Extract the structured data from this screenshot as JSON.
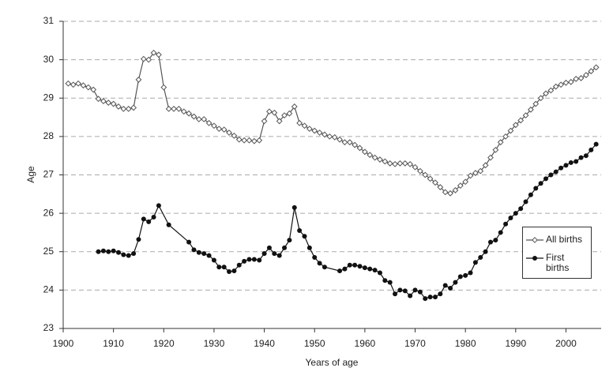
{
  "chart_data": {
    "type": "line",
    "x_label": "Years of age",
    "y_label": "Age",
    "xlim": [
      1900,
      2007
    ],
    "xticks": [
      1900,
      1910,
      1920,
      1930,
      1940,
      1950,
      1960,
      1970,
      1980,
      1990,
      2000
    ],
    "ylim": [
      23,
      31
    ],
    "yticks": [
      23,
      24,
      25,
      26,
      27,
      28,
      29,
      30,
      31
    ],
    "grid": true,
    "series": [
      {
        "name": "All births",
        "color": "#555555",
        "marker": "open-diamond",
        "x": [
          1901,
          1902,
          1903,
          1904,
          1905,
          1906,
          1907,
          1908,
          1909,
          1910,
          1911,
          1912,
          1913,
          1914,
          1915,
          1916,
          1917,
          1918,
          1919,
          1920,
          1921,
          1922,
          1923,
          1924,
          1925,
          1926,
          1927,
          1928,
          1929,
          1930,
          1931,
          1932,
          1933,
          1934,
          1935,
          1936,
          1937,
          1938,
          1939,
          1940,
          1941,
          1942,
          1943,
          1944,
          1945,
          1946,
          1947,
          1948,
          1949,
          1950,
          1951,
          1952,
          1953,
          1954,
          1955,
          1956,
          1957,
          1958,
          1959,
          1960,
          1961,
          1962,
          1963,
          1964,
          1965,
          1966,
          1967,
          1968,
          1969,
          1970,
          1971,
          1972,
          1973,
          1974,
          1975,
          1976,
          1977,
          1978,
          1979,
          1980,
          1981,
          1982,
          1983,
          1984,
          1985,
          1986,
          1987,
          1988,
          1989,
          1990,
          1991,
          1992,
          1993,
          1994,
          1995,
          1996,
          1997,
          1998,
          1999,
          2000,
          2001,
          2002,
          2003,
          2004,
          2005,
          2006
        ],
        "values": [
          29.38,
          29.35,
          29.38,
          29.33,
          29.28,
          29.22,
          28.98,
          28.92,
          28.88,
          28.85,
          28.78,
          28.72,
          28.72,
          28.75,
          29.48,
          30.02,
          30.0,
          30.18,
          30.13,
          29.28,
          28.72,
          28.72,
          28.72,
          28.65,
          28.6,
          28.52,
          28.45,
          28.45,
          28.35,
          28.28,
          28.2,
          28.18,
          28.1,
          28.02,
          27.92,
          27.9,
          27.9,
          27.88,
          27.9,
          28.4,
          28.65,
          28.62,
          28.4,
          28.55,
          28.6,
          28.78,
          28.35,
          28.28,
          28.2,
          28.15,
          28.1,
          28.05,
          28.0,
          27.98,
          27.92,
          27.85,
          27.85,
          27.78,
          27.7,
          27.6,
          27.52,
          27.45,
          27.4,
          27.35,
          27.3,
          27.28,
          27.3,
          27.3,
          27.28,
          27.2,
          27.1,
          27.0,
          26.9,
          26.8,
          26.68,
          26.55,
          26.52,
          26.6,
          26.72,
          26.82,
          26.98,
          27.05,
          27.1,
          27.25,
          27.45,
          27.65,
          27.85,
          28.0,
          28.15,
          28.3,
          28.42,
          28.55,
          28.7,
          28.85,
          29.0,
          29.12,
          29.2,
          29.3,
          29.35,
          29.4,
          29.42,
          29.5,
          29.52,
          29.6,
          29.7,
          29.8
        ]
      },
      {
        "name": "First births",
        "color": "#111111",
        "marker": "filled-circle",
        "x": [
          1907,
          1908,
          1909,
          1910,
          1911,
          1912,
          1913,
          1914,
          1915,
          1916,
          1917,
          1918,
          1919,
          1921,
          1925,
          1926,
          1927,
          1928,
          1929,
          1930,
          1931,
          1932,
          1933,
          1934,
          1935,
          1936,
          1937,
          1938,
          1939,
          1940,
          1941,
          1942,
          1943,
          1944,
          1945,
          1946,
          1947,
          1948,
          1949,
          1950,
          1951,
          1952,
          1955,
          1956,
          1957,
          1958,
          1959,
          1960,
          1961,
          1962,
          1963,
          1964,
          1965,
          1966,
          1967,
          1968,
          1969,
          1970,
          1971,
          1972,
          1973,
          1974,
          1975,
          1976,
          1977,
          1978,
          1979,
          1980,
          1981,
          1982,
          1983,
          1984,
          1985,
          1986,
          1987,
          1988,
          1989,
          1990,
          1991,
          1992,
          1993,
          1994,
          1995,
          1996,
          1997,
          1998,
          1999,
          2000,
          2001,
          2002,
          2003,
          2004,
          2005,
          2006
        ],
        "values": [
          25.0,
          25.02,
          25.0,
          25.02,
          24.98,
          24.92,
          24.9,
          24.95,
          25.32,
          25.85,
          25.78,
          25.9,
          26.2,
          25.7,
          25.25,
          25.05,
          24.98,
          24.95,
          24.9,
          24.78,
          24.6,
          24.6,
          24.48,
          24.5,
          24.65,
          24.75,
          24.8,
          24.8,
          24.78,
          24.95,
          25.1,
          24.95,
          24.9,
          25.1,
          25.3,
          26.15,
          25.55,
          25.4,
          25.1,
          24.85,
          24.7,
          24.6,
          24.5,
          24.55,
          24.65,
          24.65,
          24.62,
          24.58,
          24.55,
          24.52,
          24.45,
          24.25,
          24.2,
          23.9,
          24.0,
          23.98,
          23.85,
          24.0,
          23.95,
          23.78,
          23.82,
          23.82,
          23.9,
          24.12,
          24.05,
          24.2,
          24.35,
          24.38,
          24.45,
          24.72,
          24.85,
          25.0,
          25.25,
          25.3,
          25.5,
          25.72,
          25.88,
          26.0,
          26.12,
          26.3,
          26.48,
          26.65,
          26.78,
          26.9,
          27.0,
          27.08,
          27.18,
          27.25,
          27.32,
          27.35,
          27.45,
          27.5,
          27.65,
          27.8
        ]
      }
    ]
  }
}
